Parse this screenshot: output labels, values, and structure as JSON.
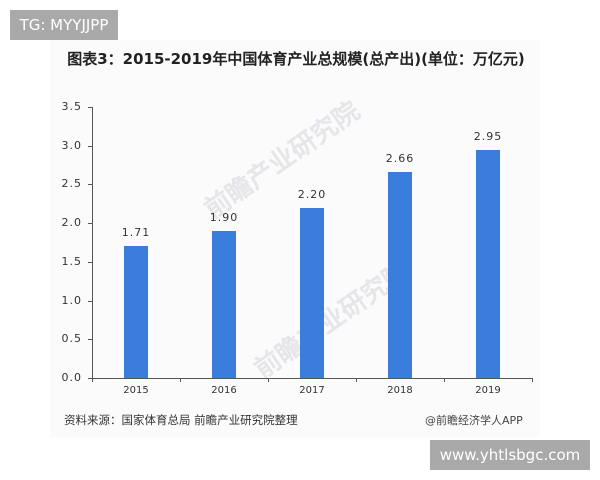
{
  "overlay": {
    "top_tag": "TG: MYYJJPP",
    "bottom_tag": "www.yhtlsbgc.com"
  },
  "figure": {
    "title": "图表3：2015-2019年中国体育产业总规模(总产出)(单位：万亿元)",
    "source": "资料来源：国家体育总局 前瞻产业研究院整理",
    "credit": "@前瞻经济学人APP",
    "watermark": "前瞻产业研究院"
  },
  "chart_data": {
    "type": "bar",
    "title": "图表3：2015-2019年中国体育产业总规模(总产出)(单位：万亿元)",
    "xlabel": "",
    "ylabel": "",
    "categories": [
      "2015",
      "2016",
      "2017",
      "2018",
      "2019"
    ],
    "values": [
      1.71,
      1.9,
      2.2,
      2.66,
      2.95
    ],
    "value_labels": [
      "1.71",
      "1.90",
      "2.20",
      "2.66",
      "2.95"
    ],
    "ylim": [
      0,
      3.5
    ],
    "yticks": [
      "0.0",
      "0.5",
      "1.0",
      "1.5",
      "2.0",
      "2.5",
      "3.0",
      "3.5"
    ],
    "grid": false,
    "legend": null,
    "bar_color": "#3a7ddb"
  }
}
